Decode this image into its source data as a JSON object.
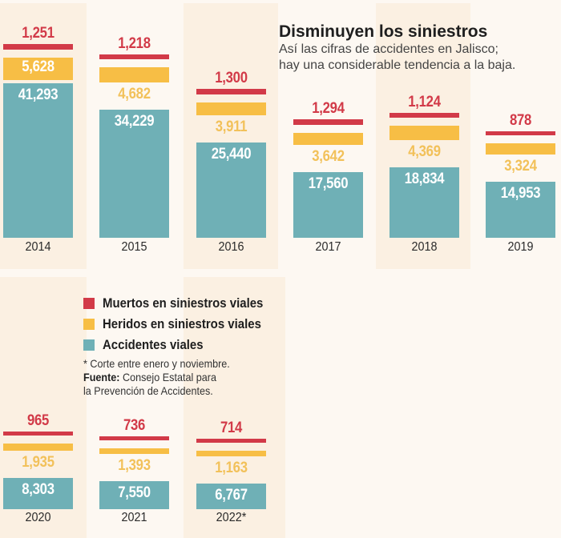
{
  "title": "Disminuyen los siniestros",
  "subtitle_line1": "Así las cifras de accidentes en Jalisco;",
  "subtitle_line2": "hay una considerable tendencia a la baja.",
  "legend": [
    {
      "label": "Muertos en siniestros viales",
      "color": "#d23a48"
    },
    {
      "label": "Heridos en siniestros viales",
      "color": "#f7be45"
    },
    {
      "label": "Accidentes viales",
      "color": "#6fb0b6"
    }
  ],
  "notes": {
    "footnote": "* Corte entre enero y noviembre.",
    "source_label": "Fuente:",
    "source_line1": "Consejo Estatal para",
    "source_line2": "la Prevención de Accidentes."
  },
  "colors": {
    "muertos": "#d23a48",
    "heridos": "#f7be45",
    "heridos_text": "#f2c15a",
    "accidentes": "#6fb0b6",
    "shade": "#fbf0e2",
    "background": "#fdf8f2"
  },
  "chart_data": {
    "type": "bar",
    "title": "Disminuyen los siniestros",
    "subtitle": "Así las cifras de accidentes en Jalisco; hay una considerable tendencia a la baja.",
    "categories": [
      "2014",
      "2015",
      "2016",
      "2017",
      "2018",
      "2019",
      "2020",
      "2021",
      "2022*"
    ],
    "series": [
      {
        "name": "Muertos en siniestros viales",
        "values": [
          1251,
          1218,
          1300,
          1294,
          1124,
          878,
          965,
          736,
          714
        ],
        "labels": [
          "1,251",
          "1,218",
          "1,300",
          "1,294",
          "1,124",
          "878",
          "965",
          "736",
          "714"
        ]
      },
      {
        "name": "Heridos en siniestros viales",
        "values": [
          5628,
          4682,
          3911,
          3642,
          4369,
          3324,
          1935,
          1393,
          1163
        ],
        "labels": [
          "5,628",
          "4,682",
          "3,911",
          "3,642",
          "4,369",
          "3,324",
          "1,935",
          "1,393",
          "1,163"
        ]
      },
      {
        "name": "Accidentes viales",
        "values": [
          41293,
          34229,
          25440,
          17560,
          18834,
          14953,
          8303,
          7550,
          6767
        ],
        "labels": [
          "41,293",
          "34,229",
          "25,440",
          "17,560",
          "18,834",
          "14,953",
          "8,303",
          "7,550",
          "6,767"
        ]
      }
    ],
    "note": "* Corte entre enero y noviembre.",
    "source": "Consejo Estatal para la Prevención de Accidentes.",
    "legend_position": "bottom-left"
  }
}
